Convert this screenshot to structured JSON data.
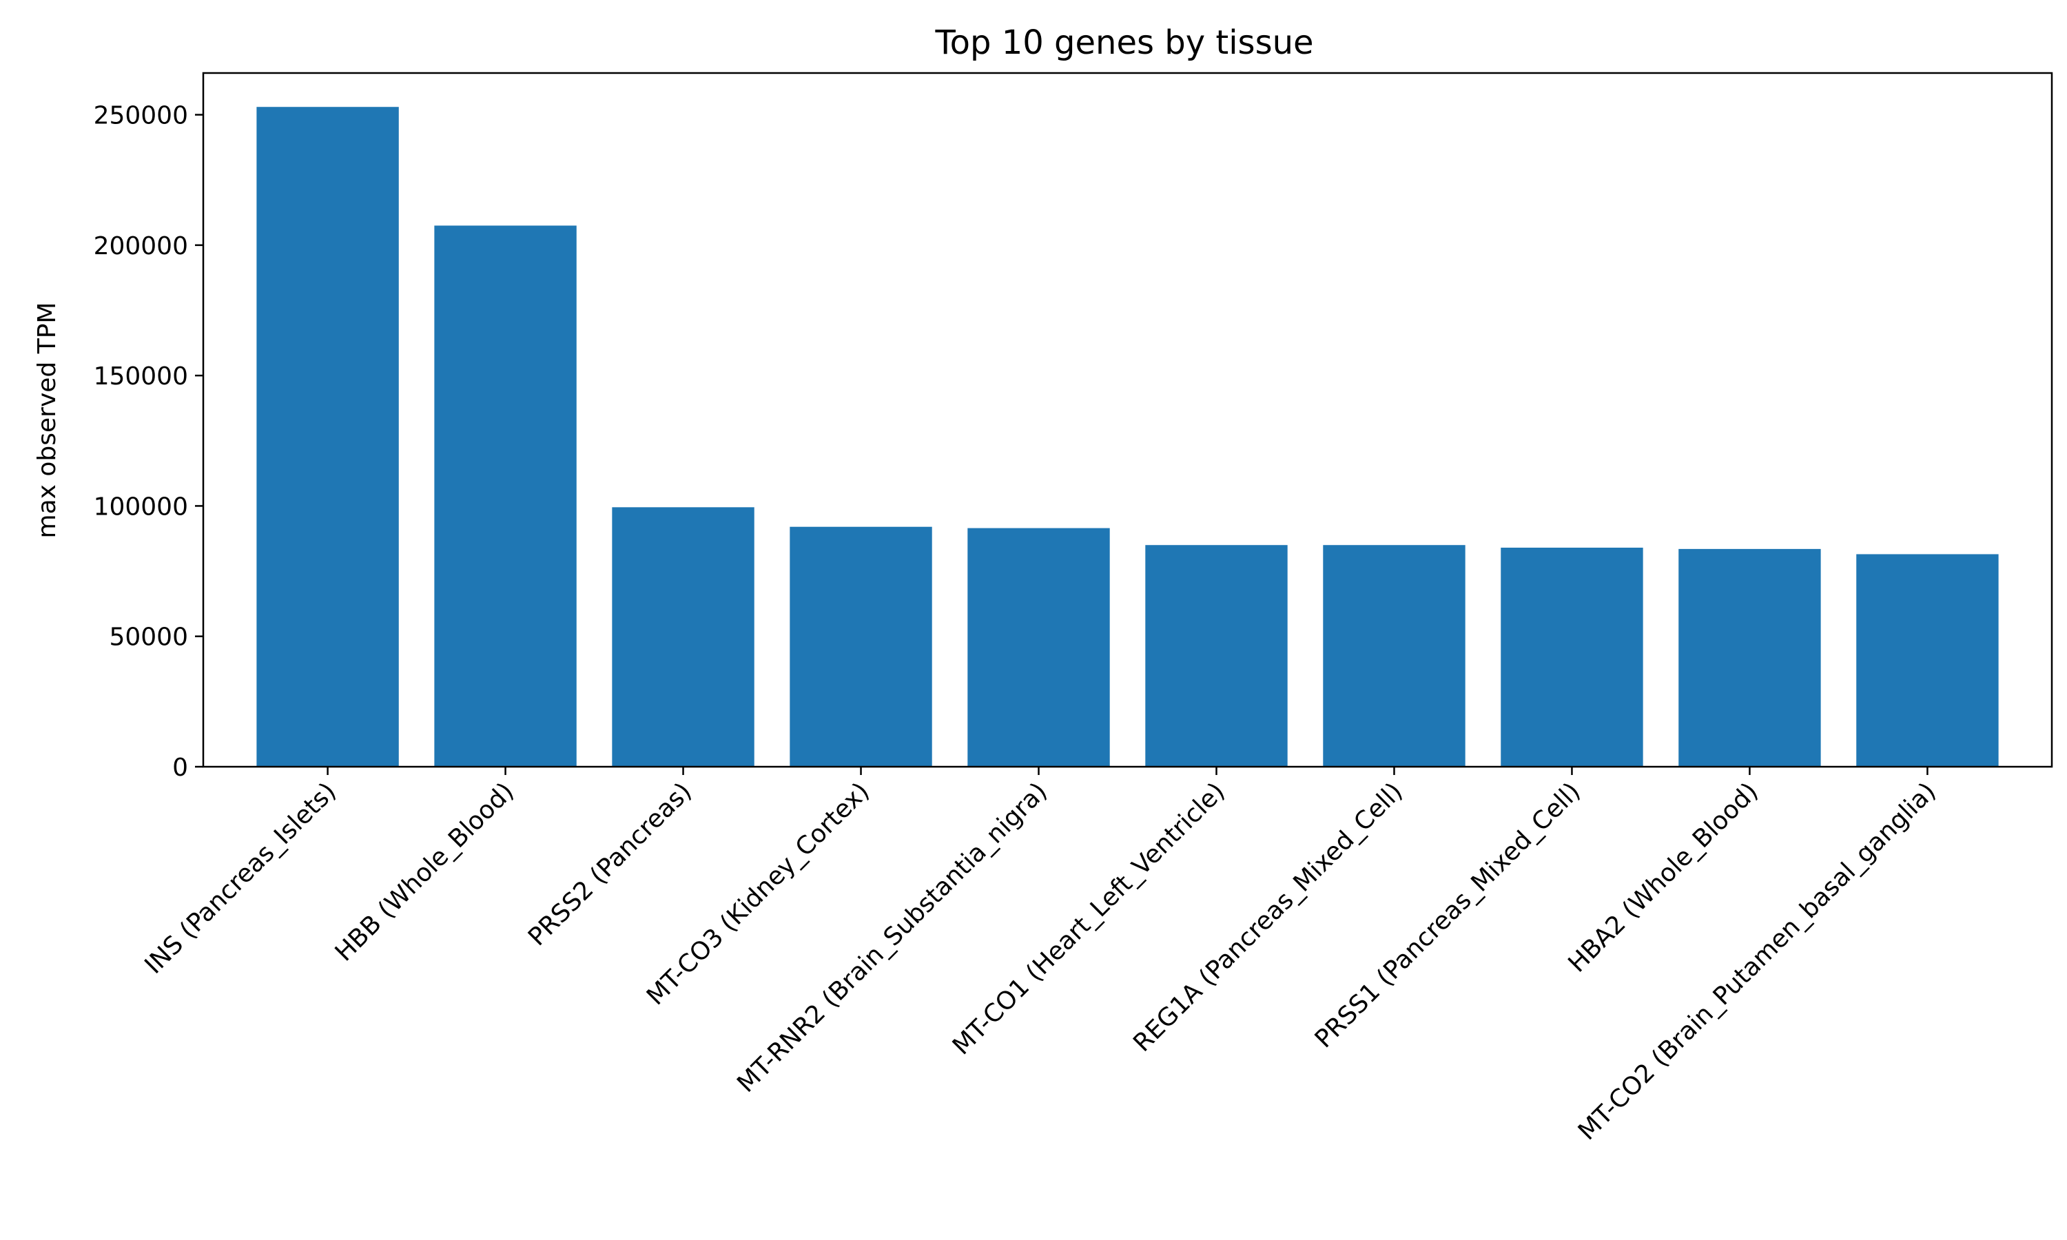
{
  "chart_data": {
    "type": "bar",
    "title": "Top 10 genes by tissue",
    "xlabel": "",
    "ylabel": "max observed TPM",
    "categories": [
      "INS (Pancreas_Islets)",
      "HBB (Whole_Blood)",
      "PRSS2 (Pancreas)",
      "MT-CO3 (Kidney_Cortex)",
      "MT-RNR2 (Brain_Substantia_nigra)",
      "MT-CO1 (Heart_Left_Ventricle)",
      "REG1A (Pancreas_Mixed_Cell)",
      "PRSS1 (Pancreas_Mixed_Cell)",
      "HBA2 (Whole_Blood)",
      "MT-CO2 (Brain_Putamen_basal_ganglia)"
    ],
    "values": [
      253000,
      207500,
      99500,
      92000,
      91500,
      85000,
      85000,
      84000,
      83500,
      81500
    ],
    "ylim": [
      0,
      266000
    ],
    "yticks": [
      0,
      50000,
      100000,
      150000,
      200000,
      250000
    ],
    "ytick_labels": [
      "0",
      "50000",
      "100000",
      "150000",
      "200000",
      "250000"
    ],
    "bar_color": "#1f77b4",
    "grid": false
  }
}
